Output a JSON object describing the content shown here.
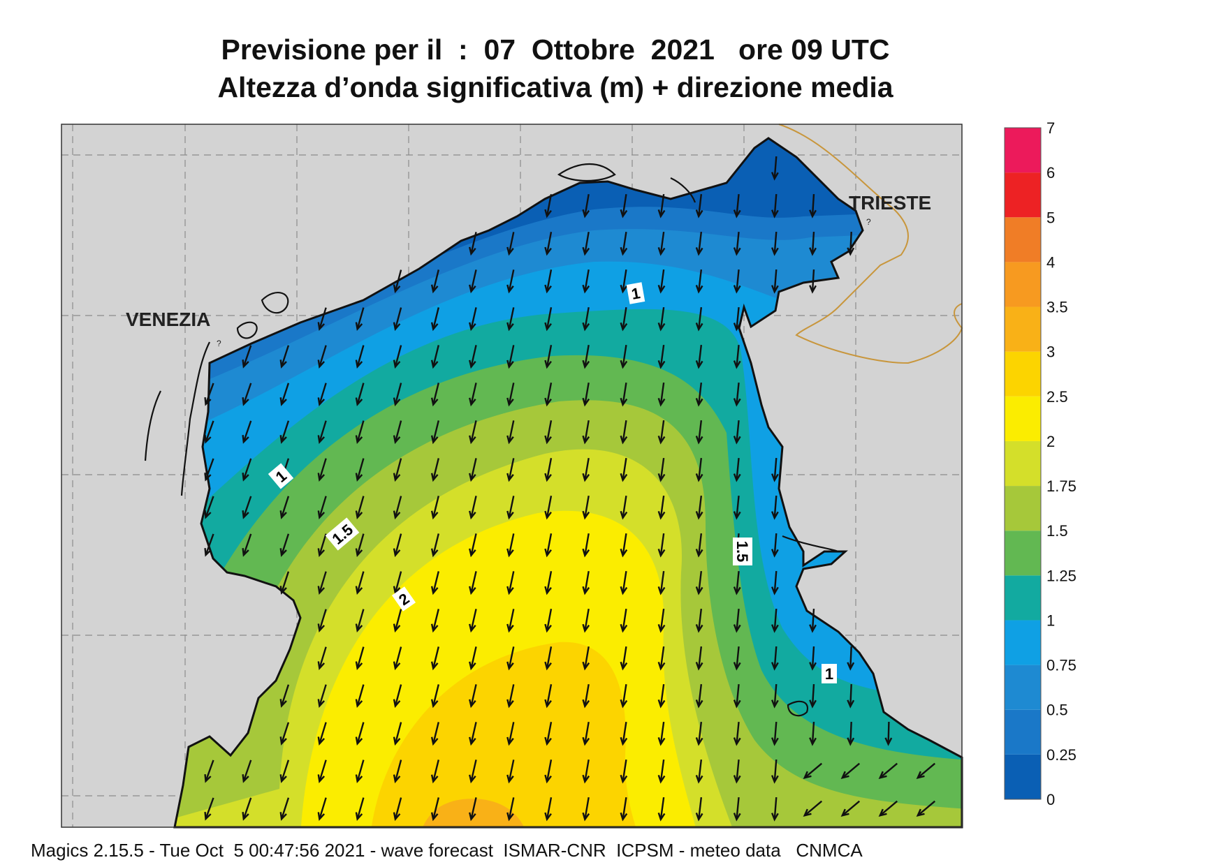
{
  "title": {
    "line1": "Previsione per il  :  07  Ottobre  2021   ore 09 UTC",
    "line2": "Altezza d’onda significativa (m) + direzione media"
  },
  "places": [
    {
      "name": "VENEZIA"
    },
    {
      "name": "TRIESTE"
    }
  ],
  "contour_labels": [
    "1",
    "1",
    "1.5",
    "2",
    "1.5",
    "1"
  ],
  "legend": {
    "ticks": [
      "0",
      "0.25",
      "0.5",
      "0.75",
      "1",
      "1.25",
      "1.5",
      "1.75",
      "2",
      "2.5",
      "3",
      "3.5",
      "4",
      "5",
      "6",
      "7"
    ],
    "colors": [
      "#0a5fb4",
      "#1a78c8",
      "#1e8ad2",
      "#0fa0e4",
      "#12aaa0",
      "#62b852",
      "#a6c83a",
      "#d4df2a",
      "#fbed00",
      "#fcd400",
      "#f9b117",
      "#f79a20",
      "#f07d26",
      "#ed2224",
      "#ec1a5b"
    ]
  },
  "credit": "Magics 2.15.5 - Tue Oct  5 00:47:56 2021 - wave forecast  ISMAR-CNR  ICPSM - meteo data   CNMCA"
}
